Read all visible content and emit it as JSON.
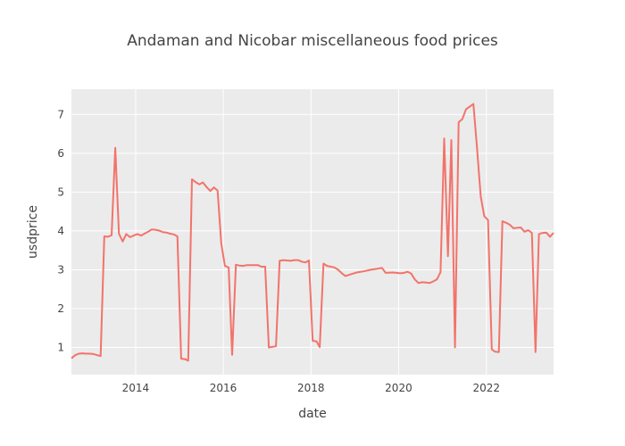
{
  "chart_data": {
    "type": "line",
    "title": "Andaman and Nicobar miscellaneous food prices",
    "xlabel": "date",
    "ylabel": "usdprice",
    "xlim": [
      "2012-07-15",
      "2023-07-15"
    ],
    "ylim": [
      0.3,
      7.65
    ],
    "x_ticks": [
      "2014",
      "2016",
      "2018",
      "2020",
      "2022"
    ],
    "y_ticks": [
      1,
      2,
      3,
      4,
      5,
      6,
      7
    ],
    "grid": true,
    "background": "#ebebeb",
    "line_color": "#f2736b",
    "series": [
      {
        "x": [
          "2012-07-15",
          "2012-08-15",
          "2012-09-15",
          "2012-10-15",
          "2012-11-15",
          "2012-12-15",
          "2013-01-15",
          "2013-02-15",
          "2013-03-15",
          "2013-04-15",
          "2013-05-15",
          "2013-06-15",
          "2013-07-15",
          "2013-08-15",
          "2013-09-15",
          "2013-10-15",
          "2013-11-15",
          "2013-12-15",
          "2014-01-15",
          "2014-02-15",
          "2014-03-15",
          "2014-04-15",
          "2014-05-15",
          "2014-06-15",
          "2014-07-15",
          "2014-08-15",
          "2014-09-15",
          "2014-10-15",
          "2014-11-15",
          "2014-12-15",
          "2015-01-15",
          "2015-02-15",
          "2015-03-15",
          "2015-04-15",
          "2015-05-15",
          "2015-06-15",
          "2015-07-15",
          "2015-08-15",
          "2015-09-15",
          "2015-10-15",
          "2015-11-15",
          "2015-12-15",
          "2016-01-15",
          "2016-02-15",
          "2016-03-15",
          "2016-04-15",
          "2016-05-15",
          "2016-06-15",
          "2016-07-15",
          "2016-08-15",
          "2016-09-15",
          "2016-10-15",
          "2016-11-15",
          "2016-12-15",
          "2017-01-15",
          "2017-03-15",
          "2017-04-15",
          "2017-05-15",
          "2017-06-15",
          "2017-07-15",
          "2017-08-15",
          "2017-09-15",
          "2017-10-15",
          "2017-11-15",
          "2017-12-15",
          "2018-01-15",
          "2018-02-15",
          "2018-03-15",
          "2018-04-15",
          "2018-05-15",
          "2018-06-15",
          "2018-07-15",
          "2018-08-15",
          "2018-09-15",
          "2018-10-15",
          "2018-11-15",
          "2018-12-15",
          "2019-01-15",
          "2019-03-15",
          "2019-05-15",
          "2019-07-15",
          "2019-08-15",
          "2019-09-15",
          "2019-11-15",
          "2020-01-15",
          "2020-02-15",
          "2020-03-15",
          "2020-04-15",
          "2020-05-15",
          "2020-06-15",
          "2020-07-15",
          "2020-08-15",
          "2020-09-15",
          "2020-10-15",
          "2020-11-15",
          "2020-12-15",
          "2021-01-15",
          "2021-02-15",
          "2021-03-15",
          "2021-04-15",
          "2021-05-15",
          "2021-06-15",
          "2021-07-15",
          "2021-08-15",
          "2021-09-15",
          "2021-10-15",
          "2021-11-15",
          "2021-12-15",
          "2022-01-15",
          "2022-02-15",
          "2022-03-15",
          "2022-04-15",
          "2022-05-15",
          "2022-06-15",
          "2022-07-15",
          "2022-08-15",
          "2022-09-15",
          "2022-10-15",
          "2022-11-15",
          "2022-12-15",
          "2023-01-15",
          "2023-02-15",
          "2023-03-15",
          "2023-04-15",
          "2023-05-15",
          "2023-06-15",
          "2023-07-15"
        ],
        "y": [
          0.72,
          0.8,
          0.84,
          0.85,
          0.84,
          0.84,
          0.83,
          0.8,
          0.78,
          3.86,
          3.85,
          3.89,
          6.14,
          3.93,
          3.73,
          3.92,
          3.84,
          3.88,
          3.92,
          3.88,
          3.93,
          3.98,
          4.04,
          4.03,
          4.01,
          3.97,
          3.96,
          3.93,
          3.91,
          3.86,
          0.71,
          0.7,
          0.66,
          5.33,
          5.26,
          5.2,
          5.25,
          5.13,
          5.03,
          5.12,
          5.04,
          3.68,
          3.1,
          3.06,
          0.81,
          3.13,
          3.11,
          3.1,
          3.12,
          3.12,
          3.12,
          3.12,
          3.08,
          3.08,
          1.0,
          1.03,
          3.23,
          3.25,
          3.24,
          3.23,
          3.25,
          3.25,
          3.21,
          3.19,
          3.24,
          1.17,
          1.16,
          1.01,
          3.16,
          3.1,
          3.08,
          3.06,
          3.0,
          2.91,
          2.84,
          2.87,
          2.9,
          2.93,
          2.96,
          3.0,
          3.03,
          3.05,
          2.92,
          2.93,
          2.91,
          2.92,
          2.95,
          2.9,
          2.75,
          2.66,
          2.68,
          2.67,
          2.66,
          2.7,
          2.75,
          2.94,
          6.38,
          3.35,
          6.34,
          1.0,
          6.8,
          6.88,
          7.13,
          7.2,
          7.27,
          6.16,
          4.89,
          4.38,
          4.28,
          0.95,
          0.89,
          0.88,
          4.25,
          4.21,
          4.16,
          4.07,
          4.08,
          4.09,
          3.98,
          4.02,
          3.95,
          0.88,
          3.92,
          3.95,
          3.96,
          3.85,
          3.95
        ]
      }
    ]
  }
}
